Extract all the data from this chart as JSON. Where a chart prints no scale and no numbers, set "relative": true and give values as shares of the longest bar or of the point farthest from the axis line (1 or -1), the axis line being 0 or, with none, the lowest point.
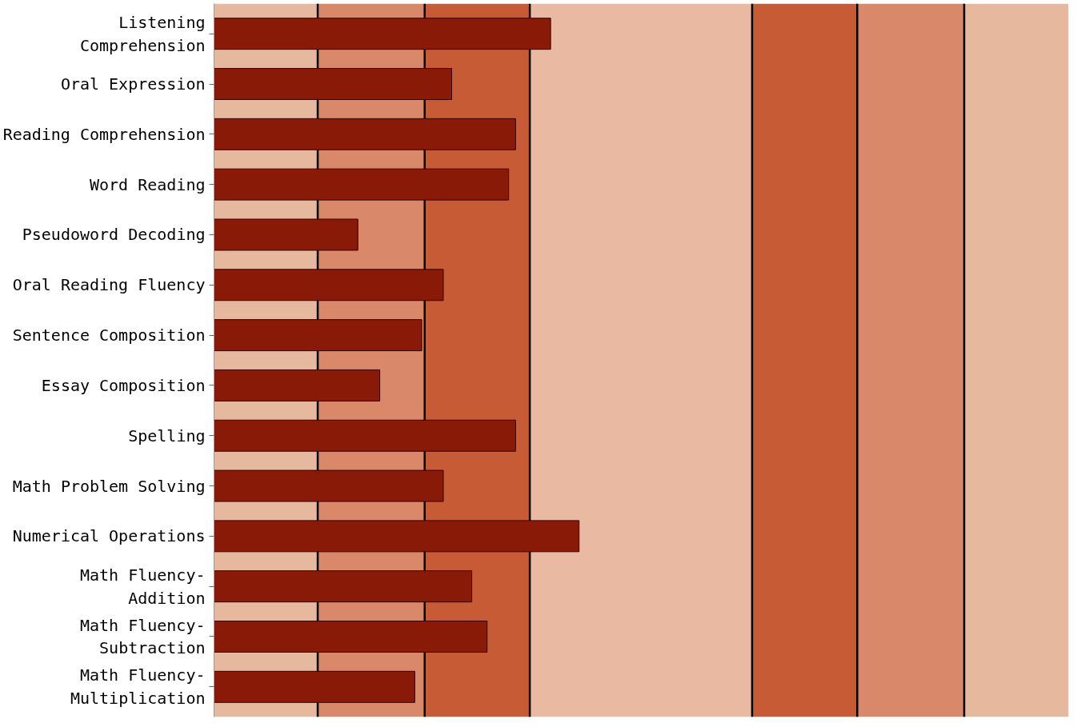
{
  "chart_data": {
    "type": "bar",
    "orientation": "horizontal",
    "relative": true,
    "tick_labels": "y",
    "categories": [
      "Listening\nComprehension",
      "Oral Expression",
      "Reading Comprehension",
      "Word Reading",
      "Pseudoword Decoding",
      "Oral Reading Fluency",
      "Sentence Composition",
      "Essay Composition",
      "Spelling",
      "Math Problem Solving",
      "Numerical Operations",
      "Math Fluency-\nAddition",
      "Math Fluency-\nSubtraction",
      "Math Fluency-\nMultiplication"
    ],
    "values": [
      0.922,
      0.651,
      0.826,
      0.807,
      0.394,
      0.628,
      0.569,
      0.454,
      0.826,
      0.628,
      1,
      0.706,
      0.748,
      0.55
    ],
    "color": "#8a1a08",
    "bands": [
      {
        "axis": "x",
        "from": 0,
        "to": 0.284,
        "color": "#e6b89e"
      },
      {
        "axis": "x",
        "from": 0.284,
        "to": 0.577,
        "color": "#d9886a"
      },
      {
        "axis": "x",
        "from": 0.577,
        "to": 0.865,
        "color": "#c75b35"
      },
      {
        "axis": "x",
        "from": 0.865,
        "to": 1.474,
        "color": "#e9b9a1"
      },
      {
        "axis": "x",
        "from": 1.474,
        "to": 1.762,
        "color": "#c75b35"
      },
      {
        "axis": "x",
        "from": 1.762,
        "to": 2.055,
        "color": "#d9886a"
      },
      {
        "axis": "x",
        "from": 2.055,
        "to": 2.341,
        "color": "#e6b89e"
      }
    ],
    "ref_lines": [
      {
        "axis": "x",
        "value": 0.284,
        "color": "#000000"
      },
      {
        "axis": "x",
        "value": 0.577,
        "color": "#000000"
      },
      {
        "axis": "x",
        "value": 0.865,
        "color": "#000000"
      },
      {
        "axis": "x",
        "value": 1.474,
        "color": "#000000"
      },
      {
        "axis": "x",
        "value": 1.762,
        "color": "#000000"
      },
      {
        "axis": "x",
        "value": 2.055,
        "color": "#000000"
      }
    ]
  }
}
